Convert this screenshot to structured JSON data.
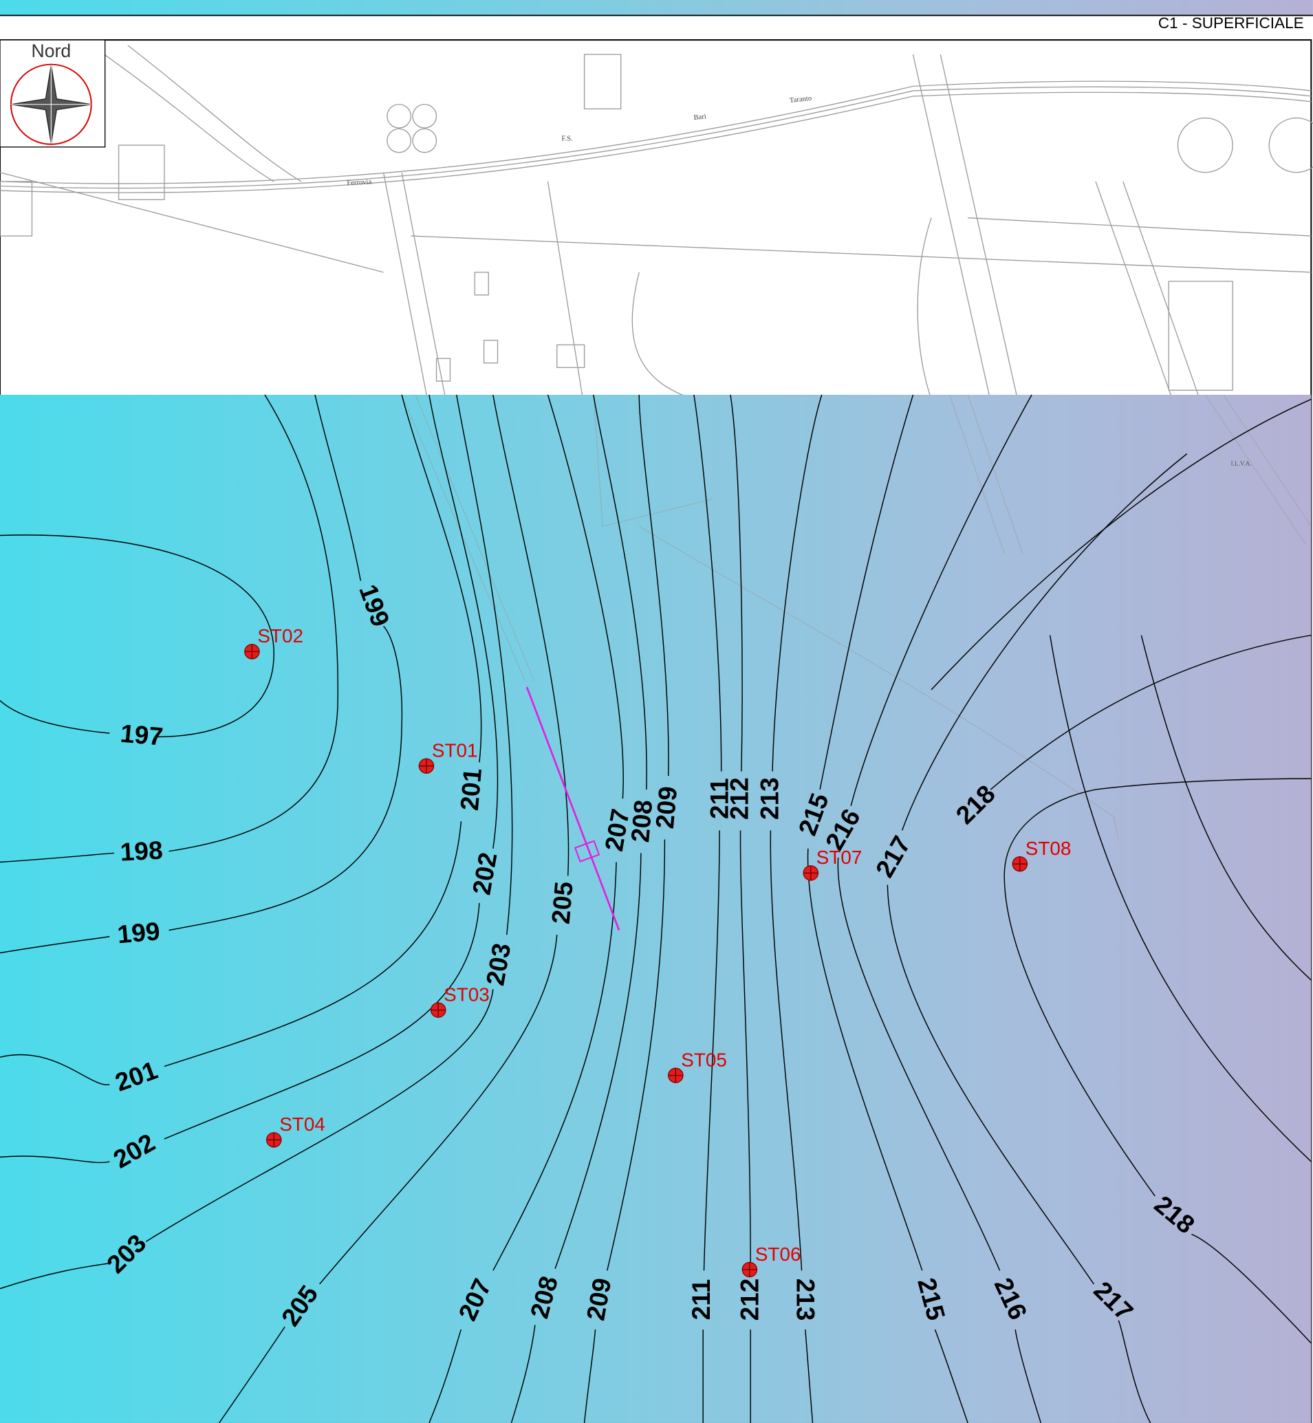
{
  "header": {
    "title": "C1 - SUPERFICIALE"
  },
  "compass": {
    "label": "Nord"
  },
  "place_labels": [
    "Ferrovia",
    "Bari",
    "Taranto",
    "F.S.",
    "I.L.V.A."
  ],
  "stations": [
    "ST02",
    "ST01",
    "ST03",
    "ST05",
    "ST04",
    "ST06",
    "ST07",
    "ST08"
  ],
  "contour_labels": [
    197,
    198,
    199,
    199,
    201,
    201,
    202,
    202,
    203,
    203,
    205,
    205,
    207,
    207,
    208,
    208,
    209,
    209,
    211,
    211,
    212,
    212,
    213,
    213,
    215,
    215,
    216,
    216,
    217,
    217,
    218,
    218
  ]
}
